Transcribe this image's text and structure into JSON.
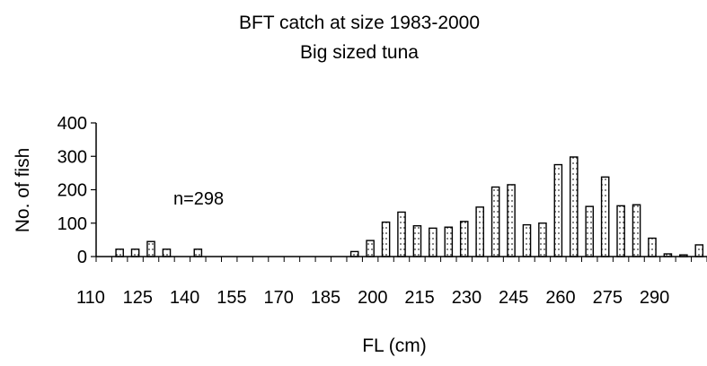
{
  "chart_data": {
    "type": "bar",
    "title": "BFT catch at size 1983-2000",
    "subtitle": "Big sized tuna",
    "xlabel": "FL (cm)",
    "ylabel": "No. of fish",
    "annotation": "n=298",
    "ylim": [
      0,
      400
    ],
    "yticks": [
      0,
      100,
      200,
      300,
      400
    ],
    "xtick_labels": [
      "110",
      "125",
      "140",
      "155",
      "170",
      "185",
      "200",
      "215",
      "230",
      "245",
      "260",
      "275",
      "290"
    ],
    "categories": [
      110,
      115,
      120,
      125,
      130,
      135,
      140,
      145,
      150,
      155,
      160,
      165,
      170,
      175,
      180,
      185,
      190,
      195,
      200,
      205,
      210,
      215,
      220,
      225,
      230,
      235,
      240,
      245,
      250,
      255,
      260,
      265,
      270,
      275,
      280,
      285,
      290,
      295,
      300
    ],
    "values": [
      0,
      22,
      22,
      45,
      22,
      0,
      22,
      0,
      0,
      0,
      0,
      0,
      0,
      0,
      0,
      0,
      15,
      48,
      103,
      133,
      92,
      85,
      88,
      105,
      148,
      208,
      215,
      95,
      100,
      275,
      298,
      150,
      238,
      152,
      155,
      55,
      8,
      5,
      35
    ],
    "grid": false,
    "bar_fill": "#ffffff",
    "bar_stroke": "#000000",
    "pattern": "dotted"
  }
}
